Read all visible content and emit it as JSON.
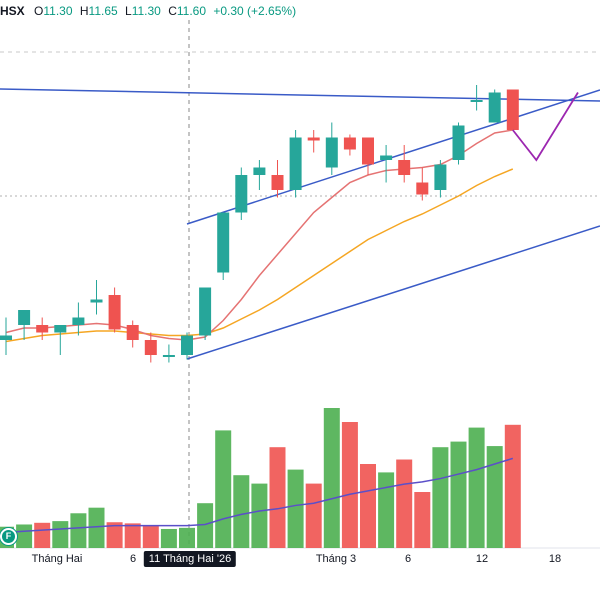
{
  "legend": {
    "symbol": "HSX",
    "open_label": "O",
    "open": "11.30",
    "high_label": "H",
    "high": "11.65",
    "low_label": "L",
    "low": "11.30",
    "close_label": "C",
    "close": "11.60",
    "change": "+0.30 (+2.65%)"
  },
  "colors": {
    "up": "#26a69a",
    "up_volume": "#4caf50",
    "down": "#ef5350",
    "ma_fast": "#e57373",
    "ma_slow": "#f5a623",
    "volume_ma": "#5b4fc9",
    "channel": "#3a5bc7",
    "projection": "#9c27b0"
  },
  "flag_icon": "F",
  "x_axis": [
    {
      "label": "Tháng Hai",
      "highlight": false
    },
    {
      "label": "6",
      "highlight": false
    },
    {
      "label": "11 Tháng Hai '26",
      "highlight": true
    },
    {
      "label": "Tháng 3",
      "highlight": false
    },
    {
      "label": "6",
      "highlight": false
    },
    {
      "label": "12",
      "highlight": false
    },
    {
      "label": "18",
      "highlight": false
    }
  ],
  "chart_data": {
    "type": "candlestick",
    "symbol": "HSX",
    "candles": [
      {
        "o": 9.95,
        "h": 10.1,
        "l": 9.85,
        "c": 9.98,
        "v": 38
      },
      {
        "o": 10.05,
        "h": 10.15,
        "l": 9.95,
        "c": 10.15,
        "v": 42
      },
      {
        "o": 10.05,
        "h": 10.1,
        "l": 9.95,
        "c": 10.0,
        "v": 45
      },
      {
        "o": 10.0,
        "h": 10.05,
        "l": 9.85,
        "c": 10.05,
        "v": 48
      },
      {
        "o": 10.05,
        "h": 10.2,
        "l": 9.98,
        "c": 10.1,
        "v": 62
      },
      {
        "o": 10.2,
        "h": 10.35,
        "l": 10.12,
        "c": 10.22,
        "v": 72
      },
      {
        "o": 10.25,
        "h": 10.3,
        "l": 10.0,
        "c": 10.02,
        "v": 46
      },
      {
        "o": 10.05,
        "h": 10.08,
        "l": 9.9,
        "c": 9.95,
        "v": 44
      },
      {
        "o": 9.95,
        "h": 10.0,
        "l": 9.8,
        "c": 9.85,
        "v": 40
      },
      {
        "o": 9.85,
        "h": 9.92,
        "l": 9.8,
        "c": 9.85,
        "v": 34
      },
      {
        "o": 9.85,
        "h": 10.0,
        "l": 9.82,
        "c": 9.98,
        "v": 36
      },
      {
        "o": 9.98,
        "h": 10.3,
        "l": 9.95,
        "c": 10.3,
        "v": 80
      },
      {
        "o": 10.4,
        "h": 10.8,
        "l": 10.35,
        "c": 10.8,
        "v": 210
      },
      {
        "o": 10.8,
        "h": 11.1,
        "l": 10.75,
        "c": 11.05,
        "v": 130
      },
      {
        "o": 11.05,
        "h": 11.15,
        "l": 10.95,
        "c": 11.1,
        "v": 115
      },
      {
        "o": 11.05,
        "h": 11.15,
        "l": 10.9,
        "c": 10.95,
        "v": 180
      },
      {
        "o": 10.95,
        "h": 11.35,
        "l": 10.9,
        "c": 11.3,
        "v": 140
      },
      {
        "o": 11.3,
        "h": 11.35,
        "l": 11.2,
        "c": 11.28,
        "v": 115
      },
      {
        "o": 11.1,
        "h": 11.4,
        "l": 11.05,
        "c": 11.3,
        "v": 250
      },
      {
        "o": 11.3,
        "h": 11.32,
        "l": 11.18,
        "c": 11.22,
        "v": 225
      },
      {
        "o": 11.3,
        "h": 11.3,
        "l": 11.05,
        "c": 11.12,
        "v": 150
      },
      {
        "o": 11.15,
        "h": 11.25,
        "l": 11.0,
        "c": 11.18,
        "v": 135
      },
      {
        "o": 11.15,
        "h": 11.25,
        "l": 11.0,
        "c": 11.05,
        "v": 158
      },
      {
        "o": 11.0,
        "h": 11.1,
        "l": 10.88,
        "c": 10.92,
        "v": 100
      },
      {
        "o": 10.95,
        "h": 11.15,
        "l": 10.9,
        "c": 11.12,
        "v": 180
      },
      {
        "o": 11.15,
        "h": 11.4,
        "l": 11.12,
        "c": 11.38,
        "v": 190
      },
      {
        "o": 11.55,
        "h": 11.65,
        "l": 11.48,
        "c": 11.55,
        "v": 215
      },
      {
        "o": 11.4,
        "h": 11.62,
        "l": 11.4,
        "c": 11.6,
        "v": 182
      },
      {
        "o": 11.62,
        "h": 11.62,
        "l": 11.35,
        "c": 11.35,
        "v": 220
      }
    ],
    "ma_fast": [
      10.0,
      10.03,
      10.03,
      10.04,
      10.05,
      10.06,
      10.05,
      10.02,
      9.98,
      9.96,
      9.95,
      9.97,
      10.08,
      10.22,
      10.38,
      10.52,
      10.66,
      10.8,
      10.9,
      11.0,
      11.05,
      11.08,
      11.09,
      11.1,
      11.12,
      11.18,
      11.26,
      11.33,
      11.35
    ],
    "ma_slow": [
      9.94,
      9.96,
      9.98,
      9.99,
      10.0,
      10.01,
      10.01,
      10.0,
      9.99,
      9.98,
      9.98,
      9.99,
      10.03,
      10.09,
      10.15,
      10.22,
      10.3,
      10.38,
      10.46,
      10.54,
      10.62,
      10.68,
      10.74,
      10.79,
      10.85,
      10.91,
      10.98,
      11.04,
      11.09
    ],
    "volume_ma": [
      28,
      30,
      32,
      34,
      36,
      38,
      40,
      40,
      40,
      40,
      40,
      42,
      52,
      60,
      66,
      70,
      76,
      80,
      88,
      96,
      102,
      108,
      114,
      118,
      124,
      132,
      140,
      150,
      160
    ],
    "projection_path": [
      [
        28,
        11.35
      ],
      [
        29.3,
        11.15
      ],
      [
        31.6,
        11.6
      ]
    ],
    "axis_labels": [
      "Tháng Hai",
      "6",
      "11 Tháng Hai '26",
      "Tháng 3",
      "6",
      "12",
      "18"
    ],
    "price_range": [
      9.55,
      11.95
    ],
    "legend_position": "top-left"
  }
}
